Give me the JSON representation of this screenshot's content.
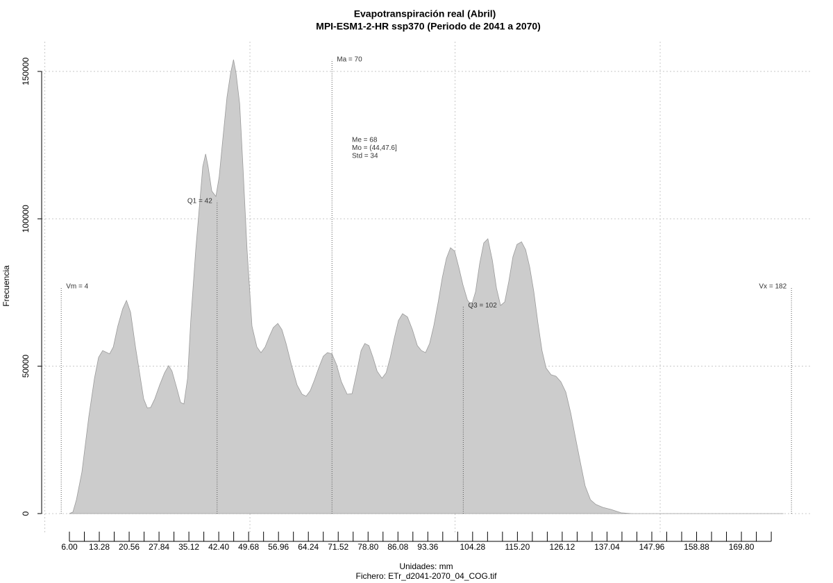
{
  "chart_data": {
    "type": "area",
    "title": "Evapotranspiración real (Abril)",
    "subtitle": "MPI-ESM1-2-HR ssp370 (Periodo de 2041 a 2070)",
    "x_label": "Unidades: mm",
    "caption": "Fichero: ETr_d2041-2070_04_COG.tif",
    "y_label": "Frecuencia",
    "xlim": [
      -0.77,
      187.05
    ],
    "ylim": [
      -6600,
      160100
    ],
    "xticks": [
      {
        "value": 6,
        "label": "6.00"
      },
      {
        "value": 13.28,
        "label": "13.28"
      },
      {
        "value": 20.56,
        "label": "20.56"
      },
      {
        "value": 27.84,
        "label": "27.84"
      },
      {
        "value": 35.12,
        "label": "35.12"
      },
      {
        "value": 42.4,
        "label": "42.40"
      },
      {
        "value": 49.68,
        "label": "49.68"
      },
      {
        "value": 56.96,
        "label": "56.96"
      },
      {
        "value": 64.24,
        "label": "64.24"
      },
      {
        "value": 71.52,
        "label": "71.52"
      },
      {
        "value": 78.8,
        "label": "78.80"
      },
      {
        "value": 86.08,
        "label": "86.08"
      },
      {
        "value": 93.36,
        "label": "93.36"
      },
      {
        "value": 104.28,
        "label": "104.28"
      },
      {
        "value": 115.2,
        "label": "115.20"
      },
      {
        "value": 126.12,
        "label": "126.12"
      },
      {
        "value": 137.04,
        "label": "137.04"
      },
      {
        "value": 147.96,
        "label": "147.96"
      },
      {
        "value": 158.88,
        "label": "158.88"
      },
      {
        "value": 169.8,
        "label": "169.80"
      }
    ],
    "xminor_ticks": [
      9.64,
      16.92,
      24.2,
      31.48,
      38.76,
      46.04,
      53.32,
      60.6,
      67.88,
      75.16,
      82.44,
      89.72,
      97,
      100.64,
      107.92,
      111.56,
      118.84,
      122.48,
      129.76,
      133.4,
      140.68,
      144.32,
      151.6,
      155.24,
      162.52,
      166.16,
      173.44,
      177.08
    ],
    "xgrid": [
      0,
      50,
      100,
      150
    ],
    "yticks": [
      0,
      50000,
      100000,
      150000
    ],
    "grid": true,
    "color": "#cccccc",
    "x": [
      6,
      6.85,
      7.7,
      9.05,
      10.74,
      12.1,
      13.1,
      14.1,
      15.8,
      16.7,
      17.8,
      19.0,
      19.9,
      20.9,
      22.1,
      23.3,
      24.1,
      25.0,
      25.8,
      26.8,
      28.0,
      29.2,
      30.2,
      31.0,
      32.1,
      33.1,
      33.9,
      34.8,
      35.6,
      36.8,
      37.8,
      38.5,
      39.2,
      39.8,
      40.7,
      41.7,
      42.5,
      43.4,
      44.4,
      45.3,
      46.0,
      46.6,
      47.5,
      48.3,
      49.3,
      50.5,
      51.7,
      52.7,
      53.7,
      54.7,
      55.7,
      56.8,
      57.8,
      58.8,
      60.1,
      61.5,
      62.7,
      63.7,
      64.7,
      65.7,
      66.9,
      67.9,
      68.9,
      70.0,
      71.1,
      72.3,
      73.7,
      74.9,
      75.9,
      77.1,
      78.0,
      79.0,
      80.0,
      81.0,
      82.2,
      83.2,
      84.2,
      85.2,
      86.2,
      87.2,
      88.4,
      89.6,
      90.8,
      91.8,
      92.8,
      93.8,
      94.8,
      95.9,
      96.9,
      97.9,
      98.9,
      99.9,
      100.9,
      101.9,
      103.0,
      104.0,
      105.0,
      106.0,
      107.0,
      108.0,
      109.1,
      110.1,
      111.1,
      112.1,
      113.1,
      114.1,
      115.1,
      116.2,
      117.2,
      118.2,
      119.2,
      120.2,
      121.2,
      122.2,
      123.4,
      124.6,
      125.8,
      127.0,
      128.2,
      129.4,
      130.6,
      131.7,
      133.0,
      134.3,
      136.0,
      138.0,
      140.5,
      143.1,
      180.0
    ],
    "values": [
      0,
      500,
      4700,
      14100,
      33000,
      45900,
      53000,
      55300,
      54200,
      56500,
      63600,
      69500,
      72300,
      68300,
      56500,
      45900,
      38900,
      35800,
      36000,
      38900,
      43600,
      47800,
      50200,
      48300,
      42900,
      37700,
      37200,
      45900,
      65900,
      89500,
      106000,
      117700,
      122000,
      117700,
      109400,
      107600,
      114200,
      127100,
      141300,
      149500,
      154000,
      149500,
      138900,
      117700,
      89500,
      63600,
      56500,
      54600,
      56500,
      60000,
      63100,
      64500,
      62400,
      57700,
      50600,
      43600,
      40500,
      39800,
      41700,
      45200,
      49900,
      53400,
      54600,
      54200,
      50600,
      44700,
      40500,
      40700,
      47100,
      55300,
      57700,
      57000,
      53000,
      48300,
      45900,
      47800,
      53000,
      59600,
      65500,
      67800,
      66700,
      62400,
      57000,
      55300,
      54600,
      57700,
      63600,
      71800,
      80100,
      86600,
      90200,
      89000,
      83600,
      77700,
      72500,
      70600,
      75300,
      84800,
      91800,
      93200,
      85900,
      76500,
      70600,
      71800,
      78800,
      87100,
      91300,
      92200,
      89500,
      83600,
      75300,
      64700,
      55300,
      49400,
      47100,
      46600,
      44700,
      41200,
      34100,
      25400,
      17000,
      9400,
      4700,
      3100,
      2100,
      1400,
      240,
      0,
      0
    ],
    "markers": [
      {
        "label": "Vm = 4",
        "x": 4,
        "y": 77000
      },
      {
        "label": "Q1 = 42",
        "x": 42,
        "y": 106000
      },
      {
        "label": "Ma = 70",
        "x": 70,
        "y": 154000
      },
      {
        "label": "Q3 = 102",
        "x": 102,
        "y": 70600
      },
      {
        "label": "Vx = 182",
        "x": 182,
        "y": 77000
      }
    ],
    "stats": [
      "Me = 68",
      "Mo = (44,47.6]",
      "Std = 34"
    ]
  }
}
